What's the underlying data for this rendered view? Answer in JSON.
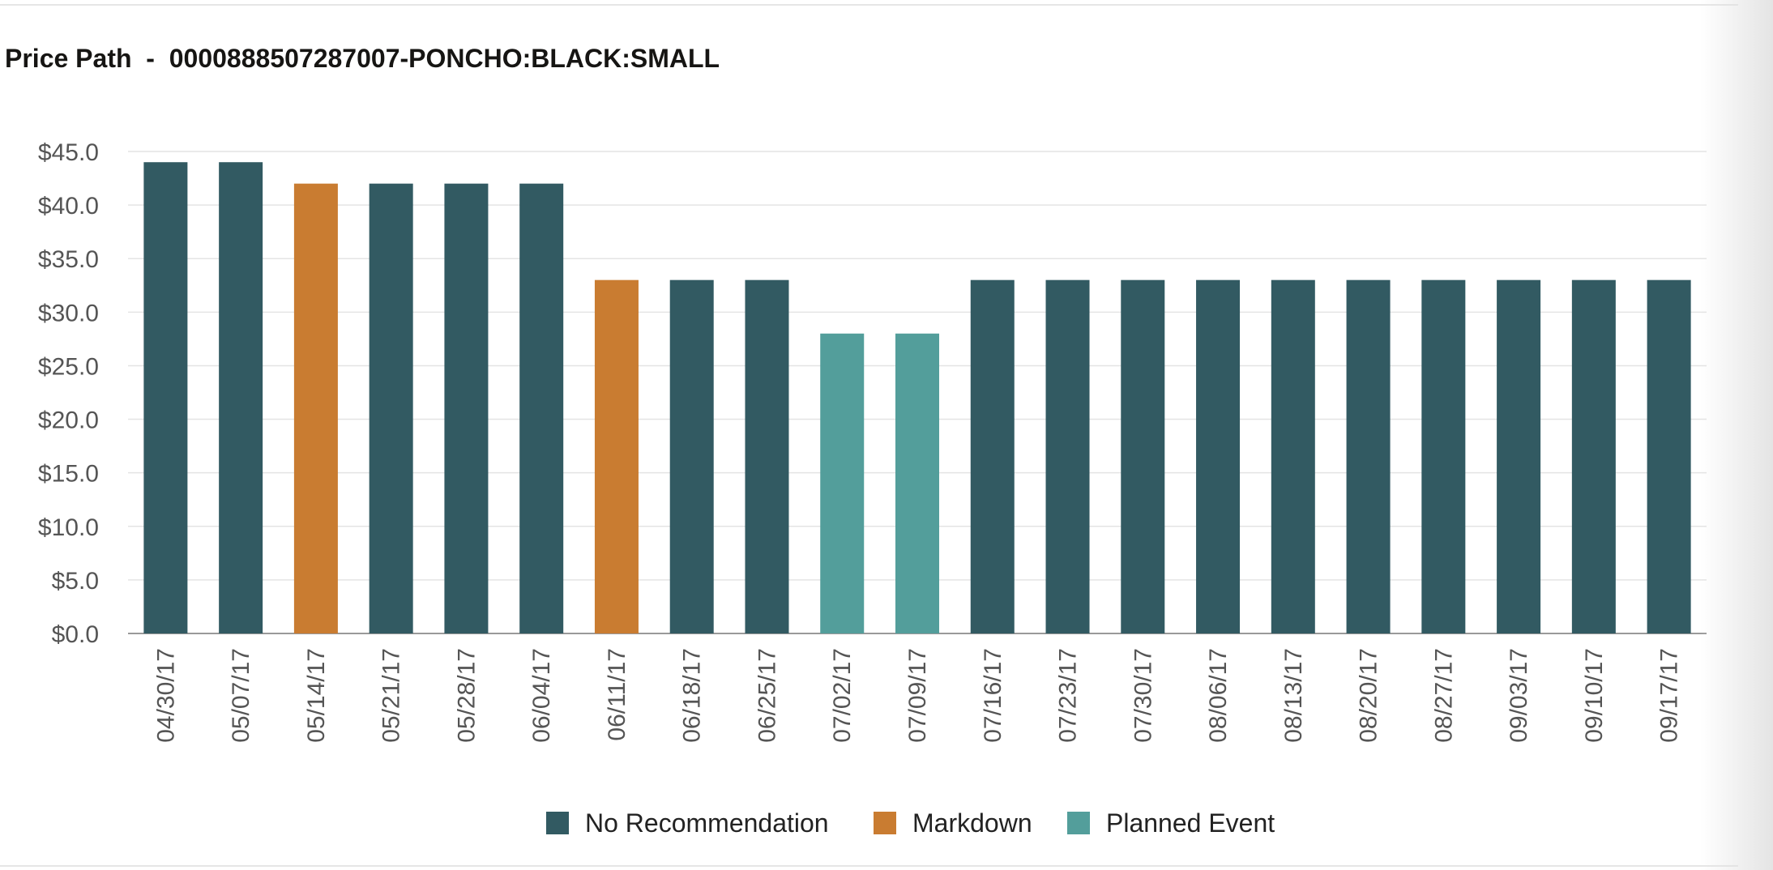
{
  "chart_data": {
    "type": "bar",
    "title": "Price Path  -  0000888507287007-PONCHO:BLACK:SMALL",
    "xlabel": "",
    "ylabel": "",
    "ylim": [
      0,
      45
    ],
    "y_ticks": [
      "$0.0",
      "$5.0",
      "$10.0",
      "$15.0",
      "$20.0",
      "$25.0",
      "$30.0",
      "$35.0",
      "$40.0",
      "$45.0"
    ],
    "grid": true,
    "legend_position": "bottom-center",
    "categories": [
      "04/30/17",
      "05/07/17",
      "05/14/17",
      "05/21/17",
      "05/28/17",
      "06/04/17",
      "06/11/17",
      "06/18/17",
      "06/25/17",
      "07/02/17",
      "07/09/17",
      "07/16/17",
      "07/23/17",
      "07/30/17",
      "08/06/17",
      "08/13/17",
      "08/20/17",
      "08/27/17",
      "09/03/17",
      "09/10/17",
      "09/17/17"
    ],
    "values": [
      44,
      44,
      42,
      42,
      42,
      42,
      33,
      33,
      33,
      28,
      28,
      33,
      33,
      33,
      33,
      33,
      33,
      33,
      33,
      33,
      33
    ],
    "bar_type": [
      "No Recommendation",
      "No Recommendation",
      "Markdown",
      "No Recommendation",
      "No Recommendation",
      "No Recommendation",
      "Markdown",
      "No Recommendation",
      "No Recommendation",
      "Planned Event",
      "Planned Event",
      "No Recommendation",
      "No Recommendation",
      "No Recommendation",
      "No Recommendation",
      "No Recommendation",
      "No Recommendation",
      "No Recommendation",
      "No Recommendation",
      "No Recommendation",
      "No Recommendation"
    ],
    "legend": [
      {
        "name": "No Recommendation",
        "color": "#325a62"
      },
      {
        "name": "Markdown",
        "color": "#c97c31"
      },
      {
        "name": "Planned Event",
        "color": "#539e9b"
      }
    ]
  },
  "colors": {
    "grid": "#e4e4e4",
    "axis": "#9a9a9a"
  }
}
